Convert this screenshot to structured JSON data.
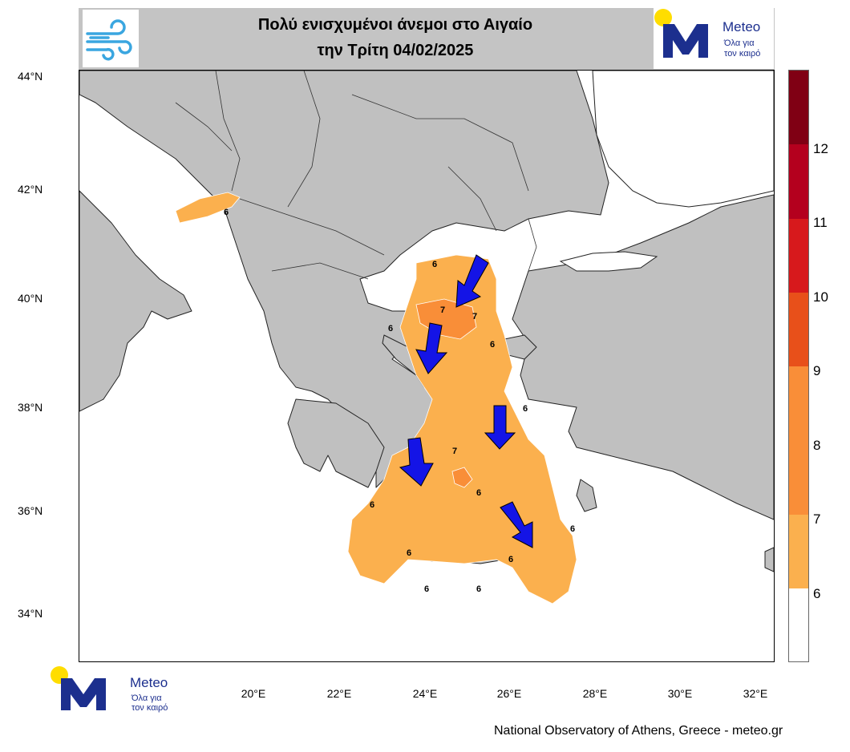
{
  "title": {
    "line1": "Πολύ ενισχυμένοι άνεμοι στο Αιγαίο",
    "line2": "την Τρίτη 04/02/2025"
  },
  "logo": {
    "word": "Meteo",
    "tagline_1": "Όλα για",
    "tagline_2": "τον καιρό",
    "brand_color": "#1c2f8e",
    "sun_color": "#ffdd00"
  },
  "icons": {
    "header": "wind-icon",
    "arrows": "wind-direction-arrow-icon"
  },
  "map": {
    "latitude_labels": [
      "44°N",
      "42°N",
      "40°N",
      "38°N",
      "36°N",
      "34°N"
    ],
    "longitude_labels": [
      "20°E",
      "22°E",
      "24°E",
      "26°E",
      "28°E",
      "30°E",
      "32°E"
    ],
    "land_color": "#c0c0c0",
    "sea_color": "#ffffff",
    "wind_arrow_color": "#1414e6",
    "contour_labels": [
      "6",
      "6",
      "6",
      "6",
      "6",
      "7",
      "7",
      "7",
      "6",
      "6",
      "6",
      "6",
      "6",
      "6",
      "6"
    ]
  },
  "colorbar": {
    "labels": [
      "12",
      "11",
      "10",
      "9",
      "8",
      "7",
      "6"
    ],
    "colors": [
      "#800014",
      "#b4001e",
      "#d7191c",
      "#e8501a",
      "#f98e38",
      "#fbb04e",
      "#ffffff"
    ]
  },
  "credit": "National Observatory of Athens, Greece - meteo.gr"
}
